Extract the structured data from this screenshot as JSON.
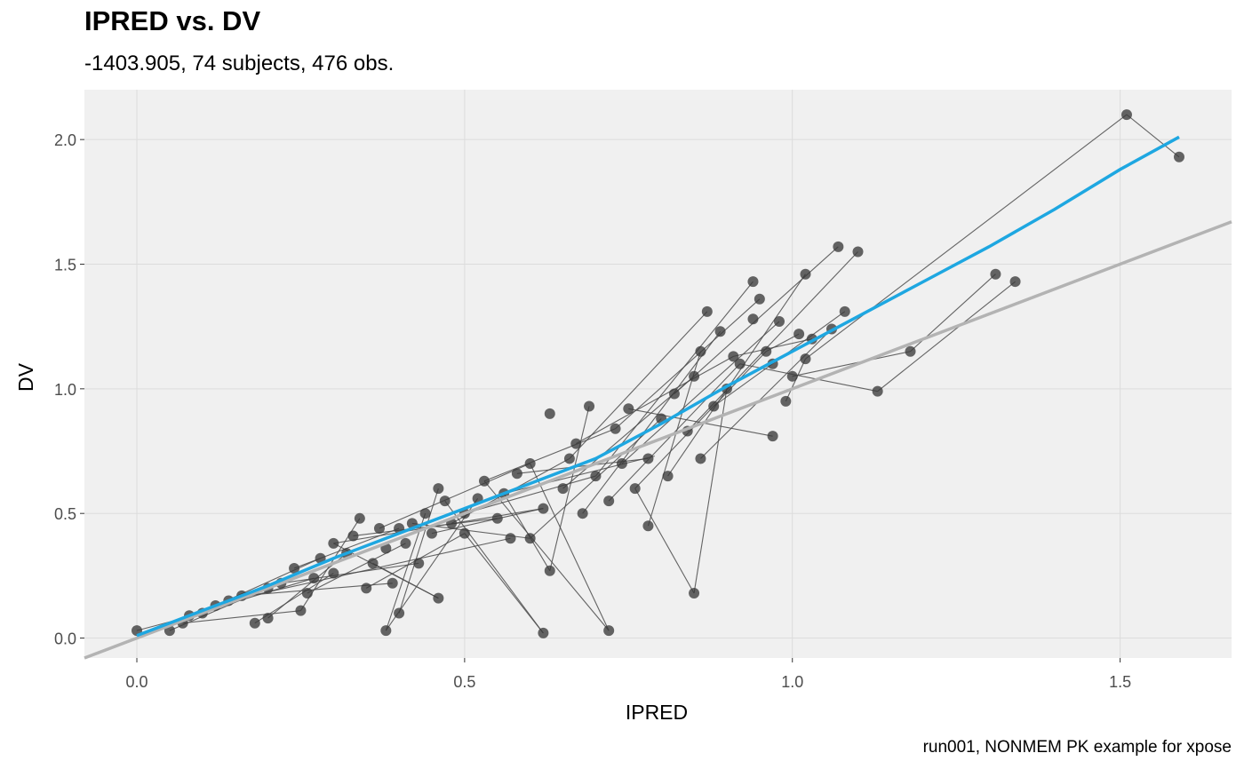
{
  "title": "IPRED vs. DV",
  "subtitle": "-1403.905, 74 subjects, 476 obs.",
  "caption": "run001, NONMEM PK example for xpose",
  "chart_data": {
    "type": "scatter",
    "xlabel": "IPRED",
    "ylabel": "DV",
    "xlim": [
      -0.08,
      1.67
    ],
    "ylim": [
      -0.08,
      2.2
    ],
    "x_ticks": [
      0.0,
      0.5,
      1.0,
      1.5
    ],
    "x_tick_labels": [
      "0.0",
      "0.5",
      "1.0",
      "1.5"
    ],
    "y_ticks": [
      0.0,
      0.5,
      1.0,
      1.5,
      2.0
    ],
    "y_tick_labels": [
      "0.0",
      "0.5",
      "1.0",
      "1.5",
      "2.0"
    ],
    "grid": true,
    "colors": {
      "panel": "#f0f0f0",
      "grid": "#dcdcdc",
      "points": "#3a3a3a",
      "lines": "#4a4a4a",
      "smooth": "#1ea7e1",
      "identity": "#b3b3b3"
    },
    "identity_line": {
      "slope": 1,
      "intercept": 0
    },
    "smooth": {
      "x": [
        0.0,
        0.1,
        0.2,
        0.3,
        0.4,
        0.5,
        0.6,
        0.7,
        0.8,
        0.9,
        1.0,
        1.1,
        1.2,
        1.3,
        1.4,
        1.5,
        1.59
      ],
      "y": [
        0.01,
        0.11,
        0.21,
        0.32,
        0.42,
        0.52,
        0.62,
        0.72,
        0.86,
        1.01,
        1.15,
        1.29,
        1.43,
        1.57,
        1.72,
        1.88,
        2.01
      ]
    },
    "points": [
      [
        0.0,
        0.03
      ],
      [
        0.05,
        0.03
      ],
      [
        0.07,
        0.06
      ],
      [
        0.08,
        0.09
      ],
      [
        0.1,
        0.1
      ],
      [
        0.12,
        0.13
      ],
      [
        0.14,
        0.15
      ],
      [
        0.16,
        0.17
      ],
      [
        0.18,
        0.06
      ],
      [
        0.2,
        0.08
      ],
      [
        0.2,
        0.2
      ],
      [
        0.22,
        0.22
      ],
      [
        0.24,
        0.28
      ],
      [
        0.25,
        0.11
      ],
      [
        0.26,
        0.18
      ],
      [
        0.27,
        0.24
      ],
      [
        0.28,
        0.32
      ],
      [
        0.3,
        0.26
      ],
      [
        0.3,
        0.38
      ],
      [
        0.32,
        0.34
      ],
      [
        0.33,
        0.41
      ],
      [
        0.34,
        0.48
      ],
      [
        0.35,
        0.2
      ],
      [
        0.36,
        0.3
      ],
      [
        0.37,
        0.44
      ],
      [
        0.38,
        0.03
      ],
      [
        0.38,
        0.36
      ],
      [
        0.39,
        0.22
      ],
      [
        0.4,
        0.1
      ],
      [
        0.4,
        0.44
      ],
      [
        0.41,
        0.38
      ],
      [
        0.42,
        0.46
      ],
      [
        0.43,
        0.3
      ],
      [
        0.44,
        0.5
      ],
      [
        0.45,
        0.42
      ],
      [
        0.46,
        0.16
      ],
      [
        0.46,
        0.6
      ],
      [
        0.47,
        0.55
      ],
      [
        0.48,
        0.46
      ],
      [
        0.5,
        0.5
      ],
      [
        0.5,
        0.42
      ],
      [
        0.52,
        0.56
      ],
      [
        0.53,
        0.63
      ],
      [
        0.55,
        0.48
      ],
      [
        0.56,
        0.58
      ],
      [
        0.57,
        0.4
      ],
      [
        0.58,
        0.66
      ],
      [
        0.6,
        0.4
      ],
      [
        0.6,
        0.7
      ],
      [
        0.62,
        0.52
      ],
      [
        0.62,
        0.02
      ],
      [
        0.63,
        0.27
      ],
      [
        0.63,
        0.9
      ],
      [
        0.65,
        0.6
      ],
      [
        0.66,
        0.72
      ],
      [
        0.67,
        0.78
      ],
      [
        0.68,
        0.5
      ],
      [
        0.69,
        0.93
      ],
      [
        0.7,
        0.65
      ],
      [
        0.72,
        0.55
      ],
      [
        0.72,
        0.03
      ],
      [
        0.73,
        0.84
      ],
      [
        0.74,
        0.7
      ],
      [
        0.75,
        0.92
      ],
      [
        0.76,
        0.6
      ],
      [
        0.78,
        0.45
      ],
      [
        0.78,
        0.72
      ],
      [
        0.8,
        0.88
      ],
      [
        0.81,
        0.65
      ],
      [
        0.82,
        0.98
      ],
      [
        0.84,
        0.83
      ],
      [
        0.85,
        0.18
      ],
      [
        0.85,
        1.05
      ],
      [
        0.86,
        0.72
      ],
      [
        0.86,
        1.15
      ],
      [
        0.87,
        1.31
      ],
      [
        0.88,
        0.93
      ],
      [
        0.89,
        1.23
      ],
      [
        0.9,
        1.0
      ],
      [
        0.91,
        1.13
      ],
      [
        0.92,
        1.1
      ],
      [
        0.94,
        1.28
      ],
      [
        0.94,
        1.43
      ],
      [
        0.95,
        1.36
      ],
      [
        0.96,
        1.15
      ],
      [
        0.97,
        1.1
      ],
      [
        0.97,
        0.81
      ],
      [
        0.98,
        1.27
      ],
      [
        0.99,
        0.95
      ],
      [
        1.0,
        1.05
      ],
      [
        1.01,
        1.22
      ],
      [
        1.02,
        1.12
      ],
      [
        1.02,
        1.46
      ],
      [
        1.03,
        1.2
      ],
      [
        1.06,
        1.24
      ],
      [
        1.07,
        1.57
      ],
      [
        1.08,
        1.31
      ],
      [
        1.1,
        1.55
      ],
      [
        1.13,
        0.99
      ],
      [
        1.18,
        1.15
      ],
      [
        1.31,
        1.46
      ],
      [
        1.34,
        1.43
      ],
      [
        1.51,
        2.1
      ],
      [
        1.59,
        1.93
      ]
    ],
    "segments": [
      [
        [
          0.0,
          0.03
        ],
        [
          0.1,
          0.1
        ]
      ],
      [
        [
          0.05,
          0.03
        ],
        [
          0.2,
          0.2
        ]
      ],
      [
        [
          0.07,
          0.06
        ],
        [
          0.25,
          0.11
        ]
      ],
      [
        [
          0.18,
          0.06
        ],
        [
          0.3,
          0.26
        ]
      ],
      [
        [
          0.2,
          0.08
        ],
        [
          0.32,
          0.34
        ]
      ],
      [
        [
          0.25,
          0.11
        ],
        [
          0.34,
          0.48
        ]
      ],
      [
        [
          0.35,
          0.2
        ],
        [
          0.5,
          0.42
        ]
      ],
      [
        [
          0.38,
          0.03
        ],
        [
          0.44,
          0.5
        ]
      ],
      [
        [
          0.38,
          0.03
        ],
        [
          0.52,
          0.56
        ]
      ],
      [
        [
          0.4,
          0.1
        ],
        [
          0.46,
          0.6
        ]
      ],
      [
        [
          0.46,
          0.16
        ],
        [
          0.3,
          0.38
        ]
      ],
      [
        [
          0.46,
          0.16
        ],
        [
          0.36,
          0.3
        ]
      ],
      [
        [
          0.33,
          0.41
        ],
        [
          0.55,
          0.48
        ]
      ],
      [
        [
          0.37,
          0.44
        ],
        [
          0.6,
          0.7
        ]
      ],
      [
        [
          0.42,
          0.46
        ],
        [
          0.6,
          0.4
        ]
      ],
      [
        [
          0.45,
          0.42
        ],
        [
          0.62,
          0.52
        ]
      ],
      [
        [
          0.48,
          0.46
        ],
        [
          0.66,
          0.72
        ]
      ],
      [
        [
          0.5,
          0.5
        ],
        [
          0.7,
          0.65
        ]
      ],
      [
        [
          0.62,
          0.02
        ],
        [
          0.5,
          0.42
        ]
      ],
      [
        [
          0.62,
          0.02
        ],
        [
          0.47,
          0.55
        ]
      ],
      [
        [
          0.63,
          0.27
        ],
        [
          0.69,
          0.93
        ]
      ],
      [
        [
          0.63,
          0.27
        ],
        [
          0.56,
          0.58
        ]
      ],
      [
        [
          0.72,
          0.03
        ],
        [
          0.6,
          0.7
        ]
      ],
      [
        [
          0.72,
          0.03
        ],
        [
          0.53,
          0.63
        ]
      ],
      [
        [
          0.85,
          0.18
        ],
        [
          0.76,
          0.6
        ]
      ],
      [
        [
          0.85,
          0.18
        ],
        [
          0.9,
          1.0
        ]
      ],
      [
        [
          0.78,
          0.45
        ],
        [
          0.86,
          1.15
        ]
      ],
      [
        [
          0.58,
          0.66
        ],
        [
          0.78,
          0.72
        ]
      ],
      [
        [
          0.6,
          0.4
        ],
        [
          0.8,
          0.88
        ]
      ],
      [
        [
          0.65,
          0.6
        ],
        [
          0.85,
          1.05
        ]
      ],
      [
        [
          0.66,
          0.72
        ],
        [
          0.87,
          1.31
        ]
      ],
      [
        [
          0.68,
          0.5
        ],
        [
          0.89,
          1.23
        ]
      ],
      [
        [
          0.7,
          0.65
        ],
        [
          0.94,
          1.43
        ]
      ],
      [
        [
          0.73,
          0.84
        ],
        [
          0.95,
          1.36
        ]
      ],
      [
        [
          0.74,
          0.7
        ],
        [
          0.98,
          1.27
        ]
      ],
      [
        [
          0.75,
          0.92
        ],
        [
          0.97,
          0.81
        ]
      ],
      [
        [
          0.81,
          0.65
        ],
        [
          1.02,
          1.46
        ]
      ],
      [
        [
          0.82,
          0.98
        ],
        [
          1.07,
          1.57
        ]
      ],
      [
        [
          0.84,
          0.83
        ],
        [
          1.1,
          1.55
        ]
      ],
      [
        [
          0.86,
          0.72
        ],
        [
          1.06,
          1.24
        ]
      ],
      [
        [
          0.88,
          0.93
        ],
        [
          1.08,
          1.31
        ]
      ],
      [
        [
          0.91,
          1.13
        ],
        [
          1.03,
          1.2
        ]
      ],
      [
        [
          0.92,
          1.1
        ],
        [
          1.13,
          0.99
        ]
      ],
      [
        [
          0.96,
          1.15
        ],
        [
          1.01,
          1.22
        ]
      ],
      [
        [
          0.99,
          0.95
        ],
        [
          1.02,
          1.12
        ]
      ],
      [
        [
          1.0,
          1.05
        ],
        [
          1.18,
          1.15
        ]
      ],
      [
        [
          1.18,
          1.15
        ],
        [
          1.31,
          1.46
        ]
      ],
      [
        [
          1.13,
          0.99
        ],
        [
          1.34,
          1.43
        ]
      ],
      [
        [
          1.02,
          1.12
        ],
        [
          1.51,
          2.1
        ]
      ],
      [
        [
          1.51,
          2.1
        ],
        [
          1.59,
          1.93
        ]
      ],
      [
        [
          0.22,
          0.22
        ],
        [
          0.43,
          0.3
        ]
      ],
      [
        [
          0.24,
          0.28
        ],
        [
          0.4,
          0.44
        ]
      ],
      [
        [
          0.26,
          0.18
        ],
        [
          0.41,
          0.38
        ]
      ],
      [
        [
          0.16,
          0.17
        ],
        [
          0.39,
          0.22
        ]
      ],
      [
        [
          0.14,
          0.15
        ],
        [
          0.57,
          0.4
        ]
      ],
      [
        [
          0.12,
          0.13
        ],
        [
          0.28,
          0.32
        ]
      ],
      [
        [
          0.08,
          0.09
        ],
        [
          0.27,
          0.24
        ]
      ],
      [
        [
          0.3,
          0.38
        ],
        [
          0.62,
          0.52
        ]
      ],
      [
        [
          0.56,
          0.58
        ],
        [
          0.79,
          0.73
        ]
      ],
      [
        [
          0.67,
          0.78
        ],
        [
          0.91,
          1.13
        ]
      ],
      [
        [
          0.72,
          0.55
        ],
        [
          0.92,
          1.1
        ]
      ],
      [
        [
          0.76,
          0.6
        ],
        [
          0.96,
          1.15
        ]
      ],
      [
        [
          0.53,
          0.63
        ],
        [
          0.73,
          0.84
        ]
      ]
    ]
  }
}
